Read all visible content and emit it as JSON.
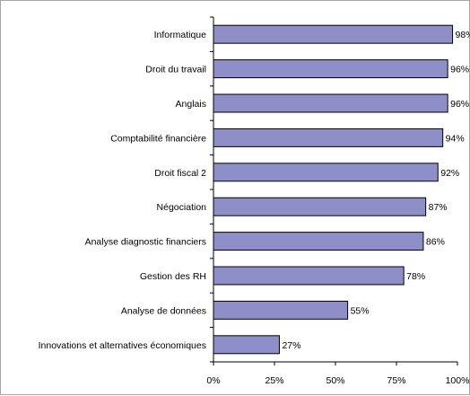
{
  "chart_data": {
    "type": "bar",
    "orientation": "horizontal",
    "title": "",
    "xlabel": "",
    "ylabel": "",
    "categories": [
      "Informatique",
      "Droit du travail",
      "Anglais",
      "Comptabilité financière",
      "Droit fiscal 2",
      "Négociation",
      "Analyse diagnostic financiers",
      "Gestion des RH",
      "Analyse de données",
      "Innovations et alternatives économiques"
    ],
    "values": [
      98,
      96,
      96,
      94,
      92,
      87,
      86,
      78,
      55,
      27
    ],
    "value_labels": [
      "98%",
      "96%",
      "96%",
      "94%",
      "92%",
      "87%",
      "86%",
      "78%",
      "55%",
      "27%"
    ],
    "xlim": [
      0,
      100
    ],
    "x_ticks": [
      0,
      25,
      50,
      75,
      100
    ],
    "x_tick_labels": [
      "0%",
      "25%",
      "50%",
      "75%",
      "100%"
    ],
    "grid": false,
    "legend": "none",
    "bar_color": "#8e8ec9",
    "bar_border_color": "#000000"
  }
}
